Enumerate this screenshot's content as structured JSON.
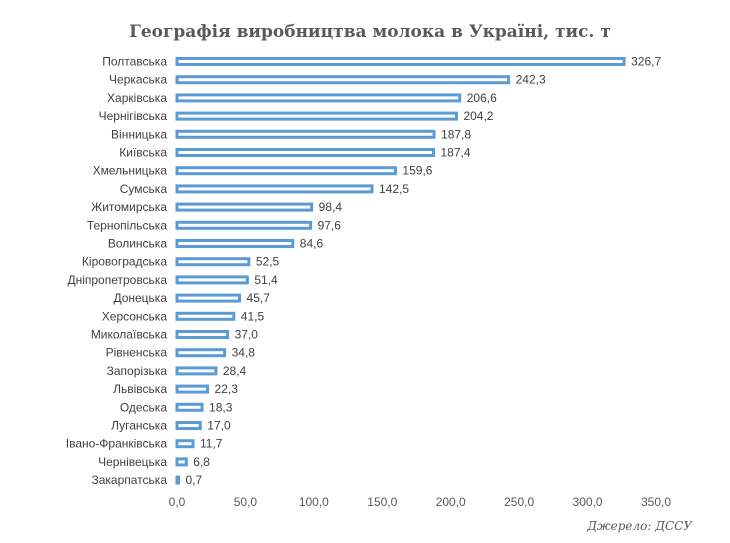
{
  "chart_data": {
    "type": "bar",
    "orientation": "horizontal",
    "title": "Географія виробництва молока в Україні, тис. т",
    "categories": [
      "Полтавська",
      "Черкаська",
      "Харківська",
      "Чернігівська",
      "Вінницька",
      "Київська",
      "Хмельницька",
      "Сумська",
      "Житомирська",
      "Тернопільська",
      "Волинська",
      "Кіровоградська",
      "Дніпропетровська",
      "Донецька",
      "Херсонська",
      "Миколаївська",
      "Рівненська",
      "Запорізька",
      "Львівська",
      "Одеська",
      "Луганська",
      "Івано-Франківська",
      "Чернівецька",
      "Закарпатська"
    ],
    "values": [
      326.7,
      242.3,
      206.6,
      204.2,
      187.8,
      187.4,
      159.6,
      142.5,
      98.4,
      97.6,
      84.6,
      52.5,
      51.4,
      45.7,
      41.5,
      37.0,
      34.8,
      28.4,
      22.3,
      18.3,
      17.0,
      11.7,
      6.8,
      0.7
    ],
    "value_labels": [
      "326,7",
      "242,3",
      "206,6",
      "204,2",
      "187,8",
      "187,4",
      "159,6",
      "142,5",
      "98,4",
      "97,6",
      "84,6",
      "52,5",
      "51,4",
      "45,7",
      "41,5",
      "37,0",
      "34,8",
      "28,4",
      "22,3",
      "18,3",
      "17,0",
      "11,7",
      "6,8",
      "0,7"
    ],
    "x_ticks": [
      0,
      50,
      100,
      150,
      200,
      250,
      300,
      350
    ],
    "x_tick_labels": [
      "0,0",
      "50,0",
      "100,0",
      "150,0",
      "200,0",
      "250,0",
      "300,0",
      "350,0"
    ],
    "xlim": [
      0,
      350
    ],
    "grid": false,
    "legend": "none",
    "bar_color": "#5b9bd5"
  },
  "source_note": "Джерело: ДССУ"
}
